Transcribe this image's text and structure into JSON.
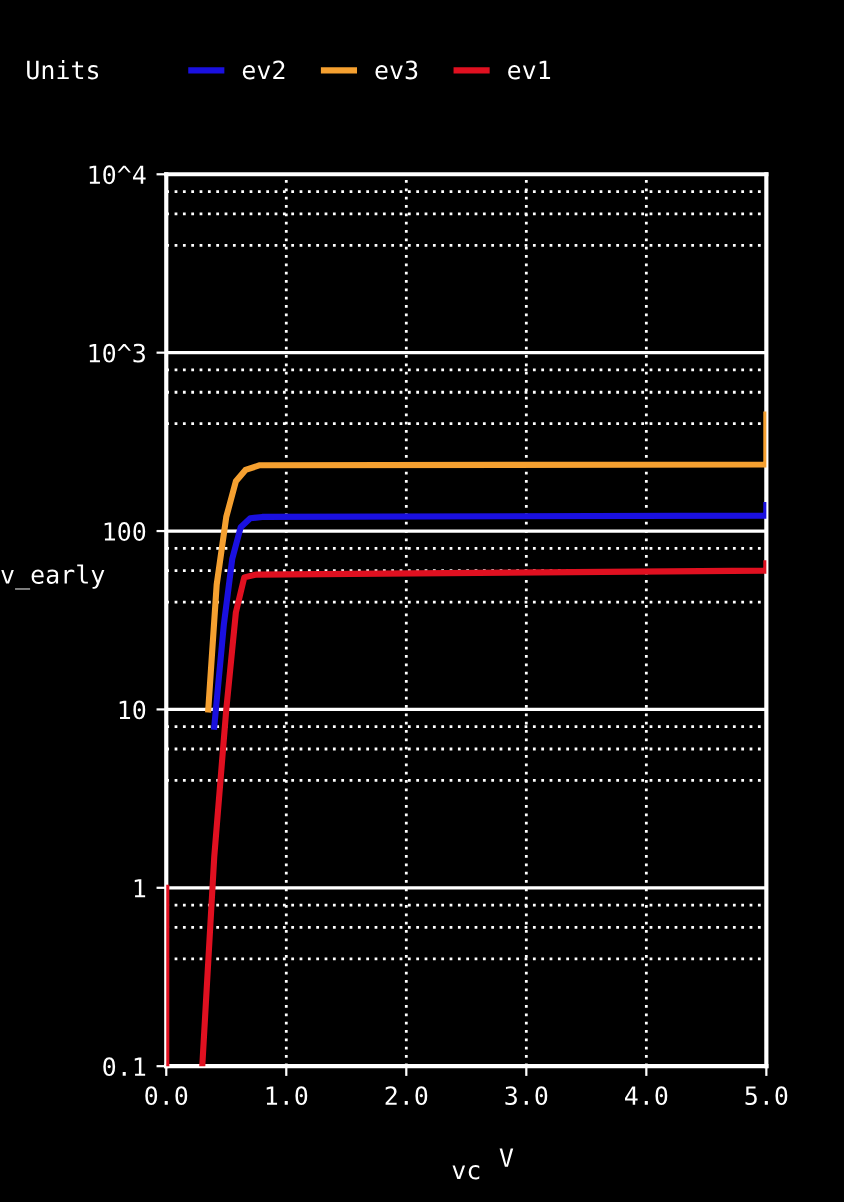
{
  "chart_data": {
    "type": "line",
    "xlabel": "vc",
    "ylabel": "v_early",
    "legend_title": "Units",
    "annotations": [
      "V"
    ],
    "series": [
      {
        "name": "ev2",
        "color": "#1a10e0",
        "x": [
          0.4,
          0.48,
          0.55,
          0.62,
          0.7,
          0.8,
          5.0,
          5.0
        ],
        "values": [
          8,
          30,
          70,
          105,
          118,
          120,
          122,
          140
        ]
      },
      {
        "name": "ev3",
        "color": "#f5a030",
        "x": [
          0.35,
          0.42,
          0.5,
          0.58,
          0.66,
          0.78,
          5.0,
          5.0
        ],
        "values": [
          10,
          50,
          120,
          190,
          220,
          234,
          236,
          450
        ]
      },
      {
        "name": "ev1",
        "color": "#e01020",
        "x": [
          0.0,
          0.0,
          0.02,
          0.3,
          0.4,
          0.5,
          0.58,
          0.65,
          0.75,
          5.0,
          5.0
        ],
        "values": [
          0.1,
          1,
          null,
          0.1,
          1.5,
          10,
          35,
          55,
          57,
          60,
          66
        ]
      }
    ],
    "xlim": [
      0,
      5
    ],
    "xticks": [
      {
        "value": 0,
        "label": "0.0"
      },
      {
        "value": 1,
        "label": "1.0"
      },
      {
        "value": 2,
        "label": "2.0"
      },
      {
        "value": 3,
        "label": "3.0"
      },
      {
        "value": 4,
        "label": "4.0"
      },
      {
        "value": 5,
        "label": "5.0"
      }
    ],
    "ylim": [
      0.1,
      10000
    ],
    "yticks": [
      0.1,
      1,
      10,
      100,
      {
        "value": 1000,
        "label": "10^3"
      },
      {
        "value": 10000,
        "label": "10^4"
      }
    ],
    "log": "y",
    "grid": true,
    "legend": "top",
    "marker": "none",
    "line_style": "solid"
  }
}
